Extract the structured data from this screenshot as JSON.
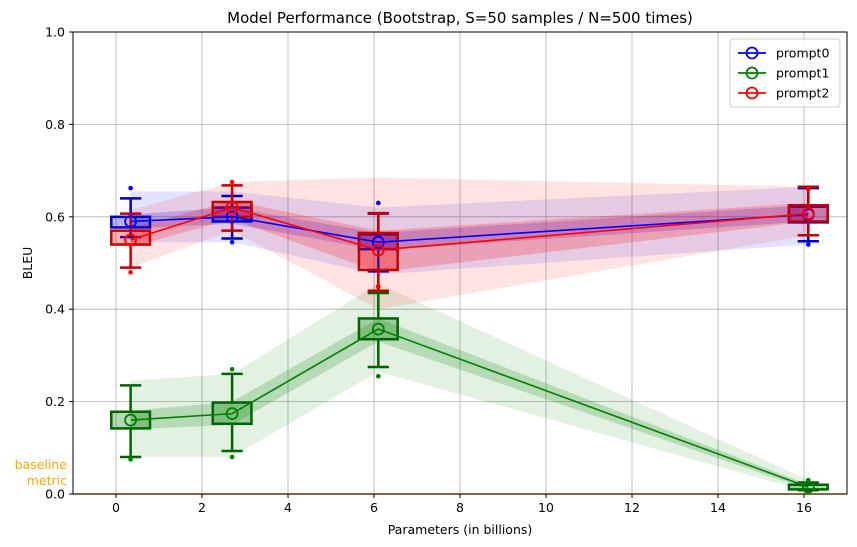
{
  "chart_data": {
    "type": "line",
    "title": "Model Performance (Bootstrap, S=50 samples / N=500 times)",
    "xlabel": "Parameters (in billions)",
    "ylabel": "BLEU",
    "xlim": [
      -1,
      17
    ],
    "ylim": [
      0,
      1
    ],
    "xticks": [
      0,
      2,
      4,
      6,
      8,
      10,
      12,
      14,
      16
    ],
    "xtick_labels": [
      "0",
      "2",
      "4",
      "6",
      "8",
      "10",
      "12",
      "14",
      "16"
    ],
    "yticks": [
      0,
      0.2,
      0.4,
      0.6,
      0.8,
      1
    ],
    "ytick_labels": [
      "0.0",
      "0.2",
      "0.4",
      "0.6",
      "0.8",
      "1.0"
    ],
    "grid": true,
    "legend_position": "top-right",
    "baseline": {
      "label_line1": "baseline",
      "label_line2": "metric",
      "value": 0,
      "color": "#FFA500"
    },
    "series": [
      {
        "name": "prompt0",
        "color": "#0000FF",
        "x": [
          0.34,
          2.7,
          6.1,
          16.1
        ],
        "mean": [
          0.59,
          0.6,
          0.545,
          0.605
        ],
        "q1": [
          0.577,
          0.59,
          0.53,
          0.588
        ],
        "q3": [
          0.6,
          0.62,
          0.562,
          0.622
        ],
        "whisker_low": [
          0.556,
          0.553,
          0.482,
          0.547
        ],
        "whisker_high": [
          0.64,
          0.645,
          0.607,
          0.662
        ],
        "outliers": [
          [
            0.662
          ],
          [
            0.545
          ],
          [
            0.63
          ],
          [
            0.54
          ]
        ],
        "band_outer_low": [
          0.545,
          0.545,
          0.475,
          0.54
        ],
        "band_outer_high": [
          0.655,
          0.655,
          0.62,
          0.665
        ],
        "band_inner_low": [
          0.575,
          0.585,
          0.528,
          0.59
        ],
        "band_inner_high": [
          0.605,
          0.62,
          0.565,
          0.625
        ]
      },
      {
        "name": "prompt1",
        "color": "#008000",
        "x": [
          0.34,
          2.7,
          6.1,
          16.1
        ],
        "mean": [
          0.16,
          0.174,
          0.357,
          0.015
        ],
        "q1": [
          0.142,
          0.152,
          0.335,
          0.01
        ],
        "q3": [
          0.178,
          0.198,
          0.38,
          0.02
        ],
        "whisker_low": [
          0.08,
          0.093,
          0.275,
          0.008
        ],
        "whisker_high": [
          0.235,
          0.26,
          0.435,
          0.025
        ],
        "outliers": [
          [
            0.075
          ],
          [
            0.08,
            0.27
          ],
          [
            0.255,
            0.448
          ],
          [
            0.03
          ]
        ],
        "band_outer_low": [
          0.08,
          0.08,
          0.265,
          0.005
        ],
        "band_outer_high": [
          0.245,
          0.26,
          0.455,
          0.03
        ],
        "band_inner_low": [
          0.14,
          0.15,
          0.33,
          0.01
        ],
        "band_inner_high": [
          0.18,
          0.2,
          0.38,
          0.02
        ]
      },
      {
        "name": "prompt2",
        "color": "#FF0000",
        "x": [
          0.34,
          2.7,
          6.1,
          16.1
        ],
        "mean": [
          0.55,
          0.62,
          0.528,
          0.607
        ],
        "q1": [
          0.54,
          0.6,
          0.485,
          0.59
        ],
        "q3": [
          0.57,
          0.632,
          0.565,
          0.625
        ],
        "whisker_low": [
          0.49,
          0.57,
          0.44,
          0.56
        ],
        "whisker_high": [
          0.607,
          0.668,
          0.608,
          0.665
        ],
        "outliers": [
          [
            0.48
          ],
          [
            0.675
          ],
          [
            0.45
          ],
          [
            0.66
          ]
        ],
        "band_outer_low": [
          0.49,
          0.57,
          0.4,
          0.56
        ],
        "band_outer_high": [
          0.615,
          0.675,
          0.685,
          0.665
        ],
        "band_inner_low": [
          0.535,
          0.595,
          0.48,
          0.59
        ],
        "band_inner_high": [
          0.575,
          0.635,
          0.57,
          0.63
        ]
      }
    ]
  }
}
